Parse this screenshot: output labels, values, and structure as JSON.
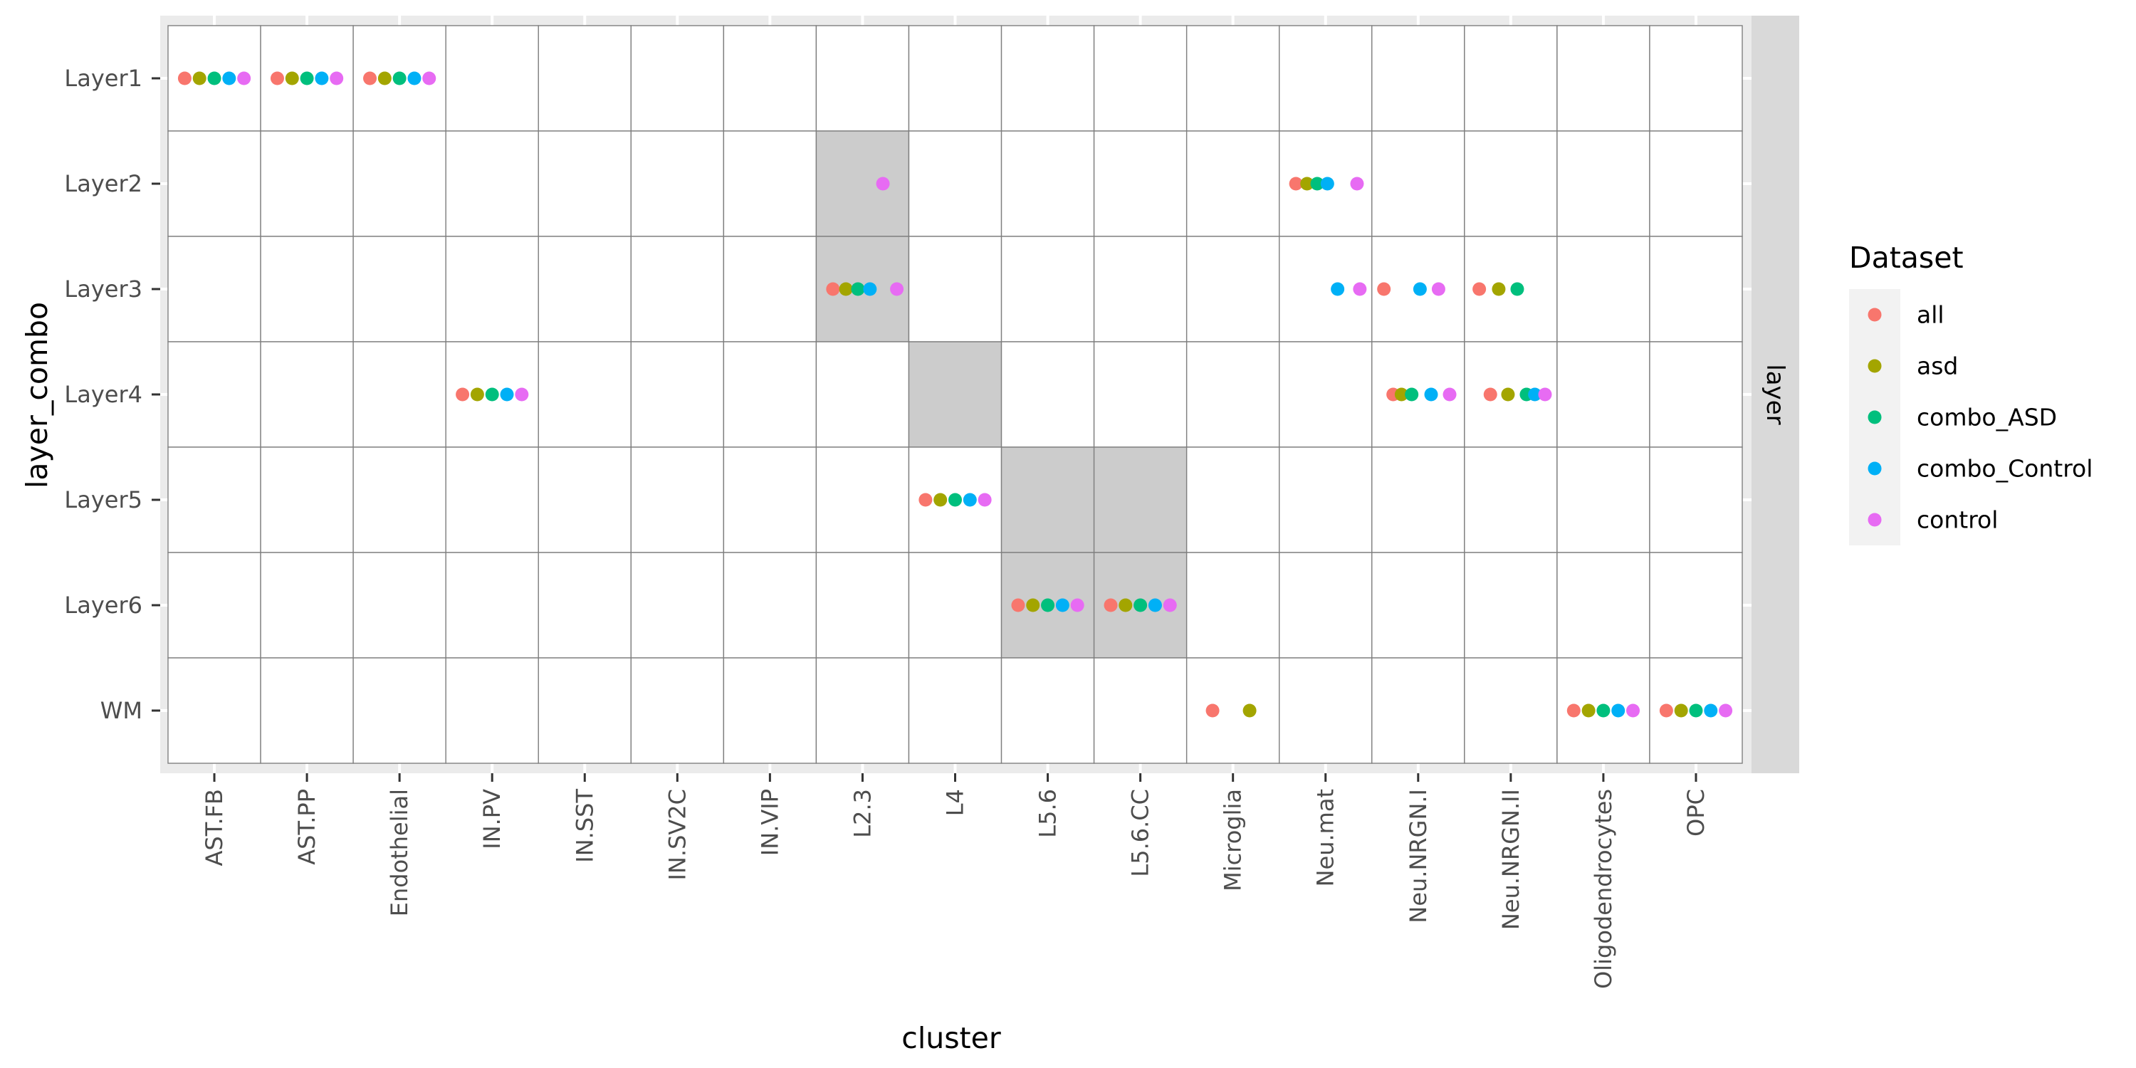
{
  "chart_data": {
    "type": "scatter",
    "xlabel": "cluster",
    "ylabel": "layer_combo",
    "facet_label": "layer",
    "x_categories": [
      "AST.FB",
      "AST.PP",
      "Endothelial",
      "IN.PV",
      "IN.SST",
      "IN.SV2C",
      "IN.VIP",
      "L2.3",
      "L4",
      "L5.6",
      "L5.6.CC",
      "Microglia",
      "Neu.mat",
      "Neu.NRGN.I",
      "Neu.NRGN.II",
      "Oligodendrocytes",
      "OPC"
    ],
    "y_categories": [
      "Layer1",
      "Layer2",
      "Layer3",
      "Layer4",
      "Layer5",
      "Layer6",
      "WM"
    ],
    "grid": true,
    "legend": {
      "title": "Dataset",
      "placement": "right",
      "entries": [
        {
          "name": "all",
          "color": "#F8766D"
        },
        {
          "name": "asd",
          "color": "#A3A500"
        },
        {
          "name": "combo_ASD",
          "color": "#00BF7D"
        },
        {
          "name": "combo_Control",
          "color": "#00B0F6"
        },
        {
          "name": "control",
          "color": "#E76BF3"
        }
      ]
    },
    "shaded_cells": [
      {
        "x": "L2.3",
        "y": "Layer2"
      },
      {
        "x": "L2.3",
        "y": "Layer3"
      },
      {
        "x": "L4",
        "y": "Layer4"
      },
      {
        "x": "L5.6",
        "y": "Layer5"
      },
      {
        "x": "L5.6",
        "y": "Layer6"
      },
      {
        "x": "L5.6.CC",
        "y": "Layer5"
      },
      {
        "x": "L5.6.CC",
        "y": "Layer6"
      }
    ],
    "shade_color": "#cccccc",
    "points": [
      {
        "x": "AST.FB",
        "y": "Layer1",
        "dataset": "all",
        "offset": -0.32
      },
      {
        "x": "AST.FB",
        "y": "Layer1",
        "dataset": "asd",
        "offset": -0.16
      },
      {
        "x": "AST.FB",
        "y": "Layer1",
        "dataset": "combo_ASD",
        "offset": 0.0
      },
      {
        "x": "AST.FB",
        "y": "Layer1",
        "dataset": "combo_Control",
        "offset": 0.16
      },
      {
        "x": "AST.FB",
        "y": "Layer1",
        "dataset": "control",
        "offset": 0.32
      },
      {
        "x": "AST.PP",
        "y": "Layer1",
        "dataset": "all",
        "offset": -0.32
      },
      {
        "x": "AST.PP",
        "y": "Layer1",
        "dataset": "asd",
        "offset": -0.16
      },
      {
        "x": "AST.PP",
        "y": "Layer1",
        "dataset": "combo_ASD",
        "offset": 0.0
      },
      {
        "x": "AST.PP",
        "y": "Layer1",
        "dataset": "combo_Control",
        "offset": 0.16
      },
      {
        "x": "AST.PP",
        "y": "Layer1",
        "dataset": "control",
        "offset": 0.32
      },
      {
        "x": "Endothelial",
        "y": "Layer1",
        "dataset": "all",
        "offset": -0.32
      },
      {
        "x": "Endothelial",
        "y": "Layer1",
        "dataset": "asd",
        "offset": -0.16
      },
      {
        "x": "Endothelial",
        "y": "Layer1",
        "dataset": "combo_ASD",
        "offset": 0.0
      },
      {
        "x": "Endothelial",
        "y": "Layer1",
        "dataset": "combo_Control",
        "offset": 0.16
      },
      {
        "x": "Endothelial",
        "y": "Layer1",
        "dataset": "control",
        "offset": 0.32
      },
      {
        "x": "IN.PV",
        "y": "Layer4",
        "dataset": "all",
        "offset": -0.32
      },
      {
        "x": "IN.PV",
        "y": "Layer4",
        "dataset": "asd",
        "offset": -0.16
      },
      {
        "x": "IN.PV",
        "y": "Layer4",
        "dataset": "combo_ASD",
        "offset": 0.0
      },
      {
        "x": "IN.PV",
        "y": "Layer4",
        "dataset": "combo_Control",
        "offset": 0.16
      },
      {
        "x": "IN.PV",
        "y": "Layer4",
        "dataset": "control",
        "offset": 0.32
      },
      {
        "x": "L2.3",
        "y": "Layer2",
        "dataset": "control",
        "offset": 0.22
      },
      {
        "x": "L2.3",
        "y": "Layer3",
        "dataset": "all",
        "offset": -0.32
      },
      {
        "x": "L2.3",
        "y": "Layer3",
        "dataset": "asd",
        "offset": -0.18
      },
      {
        "x": "L2.3",
        "y": "Layer3",
        "dataset": "combo_ASD",
        "offset": -0.05
      },
      {
        "x": "L2.3",
        "y": "Layer3",
        "dataset": "combo_Control",
        "offset": 0.08
      },
      {
        "x": "L2.3",
        "y": "Layer3",
        "dataset": "control",
        "offset": 0.37
      },
      {
        "x": "L4",
        "y": "Layer5",
        "dataset": "all",
        "offset": -0.32
      },
      {
        "x": "L4",
        "y": "Layer5",
        "dataset": "asd",
        "offset": -0.16
      },
      {
        "x": "L4",
        "y": "Layer5",
        "dataset": "combo_ASD",
        "offset": 0.0
      },
      {
        "x": "L4",
        "y": "Layer5",
        "dataset": "combo_Control",
        "offset": 0.16
      },
      {
        "x": "L4",
        "y": "Layer5",
        "dataset": "control",
        "offset": 0.32
      },
      {
        "x": "L5.6",
        "y": "Layer6",
        "dataset": "all",
        "offset": -0.32
      },
      {
        "x": "L5.6",
        "y": "Layer6",
        "dataset": "asd",
        "offset": -0.16
      },
      {
        "x": "L5.6",
        "y": "Layer6",
        "dataset": "combo_ASD",
        "offset": 0.0
      },
      {
        "x": "L5.6",
        "y": "Layer6",
        "dataset": "combo_Control",
        "offset": 0.16
      },
      {
        "x": "L5.6",
        "y": "Layer6",
        "dataset": "control",
        "offset": 0.32
      },
      {
        "x": "L5.6.CC",
        "y": "Layer6",
        "dataset": "all",
        "offset": -0.32
      },
      {
        "x": "L5.6.CC",
        "y": "Layer6",
        "dataset": "asd",
        "offset": -0.16
      },
      {
        "x": "L5.6.CC",
        "y": "Layer6",
        "dataset": "combo_ASD",
        "offset": 0.0
      },
      {
        "x": "L5.6.CC",
        "y": "Layer6",
        "dataset": "combo_Control",
        "offset": 0.16
      },
      {
        "x": "L5.6.CC",
        "y": "Layer6",
        "dataset": "control",
        "offset": 0.32
      },
      {
        "x": "Microglia",
        "y": "WM",
        "dataset": "all",
        "offset": -0.22
      },
      {
        "x": "Microglia",
        "y": "WM",
        "dataset": "asd",
        "offset": 0.18
      },
      {
        "x": "Neu.mat",
        "y": "Layer2",
        "dataset": "all",
        "offset": -0.32
      },
      {
        "x": "Neu.mat",
        "y": "Layer2",
        "dataset": "asd",
        "offset": -0.2
      },
      {
        "x": "Neu.mat",
        "y": "Layer2",
        "dataset": "combo_ASD",
        "offset": -0.09
      },
      {
        "x": "Neu.mat",
        "y": "Layer2",
        "dataset": "combo_Control",
        "offset": 0.02
      },
      {
        "x": "Neu.mat",
        "y": "Layer2",
        "dataset": "control",
        "offset": 0.34
      },
      {
        "x": "Neu.mat",
        "y": "Layer3",
        "dataset": "combo_Control",
        "offset": 0.13
      },
      {
        "x": "Neu.mat",
        "y": "Layer3",
        "dataset": "control",
        "offset": 0.37
      },
      {
        "x": "Neu.NRGN.I",
        "y": "Layer3",
        "dataset": "all",
        "offset": -0.37
      },
      {
        "x": "Neu.NRGN.I",
        "y": "Layer3",
        "dataset": "combo_Control",
        "offset": 0.02
      },
      {
        "x": "Neu.NRGN.I",
        "y": "Layer3",
        "dataset": "control",
        "offset": 0.22
      },
      {
        "x": "Neu.NRGN.I",
        "y": "Layer4",
        "dataset": "all",
        "offset": -0.27
      },
      {
        "x": "Neu.NRGN.I",
        "y": "Layer4",
        "dataset": "asd",
        "offset": -0.18
      },
      {
        "x": "Neu.NRGN.I",
        "y": "Layer4",
        "dataset": "combo_ASD",
        "offset": -0.07
      },
      {
        "x": "Neu.NRGN.I",
        "y": "Layer4",
        "dataset": "combo_Control",
        "offset": 0.14
      },
      {
        "x": "Neu.NRGN.I",
        "y": "Layer4",
        "dataset": "control",
        "offset": 0.34
      },
      {
        "x": "Neu.NRGN.II",
        "y": "Layer3",
        "dataset": "all",
        "offset": -0.34
      },
      {
        "x": "Neu.NRGN.II",
        "y": "Layer3",
        "dataset": "asd",
        "offset": -0.13
      },
      {
        "x": "Neu.NRGN.II",
        "y": "Layer3",
        "dataset": "combo_ASD",
        "offset": 0.07
      },
      {
        "x": "Neu.NRGN.II",
        "y": "Layer4",
        "dataset": "all",
        "offset": -0.22
      },
      {
        "x": "Neu.NRGN.II",
        "y": "Layer4",
        "dataset": "asd",
        "offset": -0.03
      },
      {
        "x": "Neu.NRGN.II",
        "y": "Layer4",
        "dataset": "combo_ASD",
        "offset": 0.17
      },
      {
        "x": "Neu.NRGN.II",
        "y": "Layer4",
        "dataset": "combo_Control",
        "offset": 0.26
      },
      {
        "x": "Neu.NRGN.II",
        "y": "Layer4",
        "dataset": "control",
        "offset": 0.37
      },
      {
        "x": "Oligodendrocytes",
        "y": "WM",
        "dataset": "all",
        "offset": -0.32
      },
      {
        "x": "Oligodendrocytes",
        "y": "WM",
        "dataset": "asd",
        "offset": -0.16
      },
      {
        "x": "Oligodendrocytes",
        "y": "WM",
        "dataset": "combo_ASD",
        "offset": 0.0
      },
      {
        "x": "Oligodendrocytes",
        "y": "WM",
        "dataset": "combo_Control",
        "offset": 0.16
      },
      {
        "x": "Oligodendrocytes",
        "y": "WM",
        "dataset": "control",
        "offset": 0.32
      },
      {
        "x": "OPC",
        "y": "WM",
        "dataset": "all",
        "offset": -0.32
      },
      {
        "x": "OPC",
        "y": "WM",
        "dataset": "asd",
        "offset": -0.16
      },
      {
        "x": "OPC",
        "y": "WM",
        "dataset": "combo_ASD",
        "offset": 0.0
      },
      {
        "x": "OPC",
        "y": "WM",
        "dataset": "combo_Control",
        "offset": 0.16
      },
      {
        "x": "OPC",
        "y": "WM",
        "dataset": "control",
        "offset": 0.32
      }
    ]
  }
}
